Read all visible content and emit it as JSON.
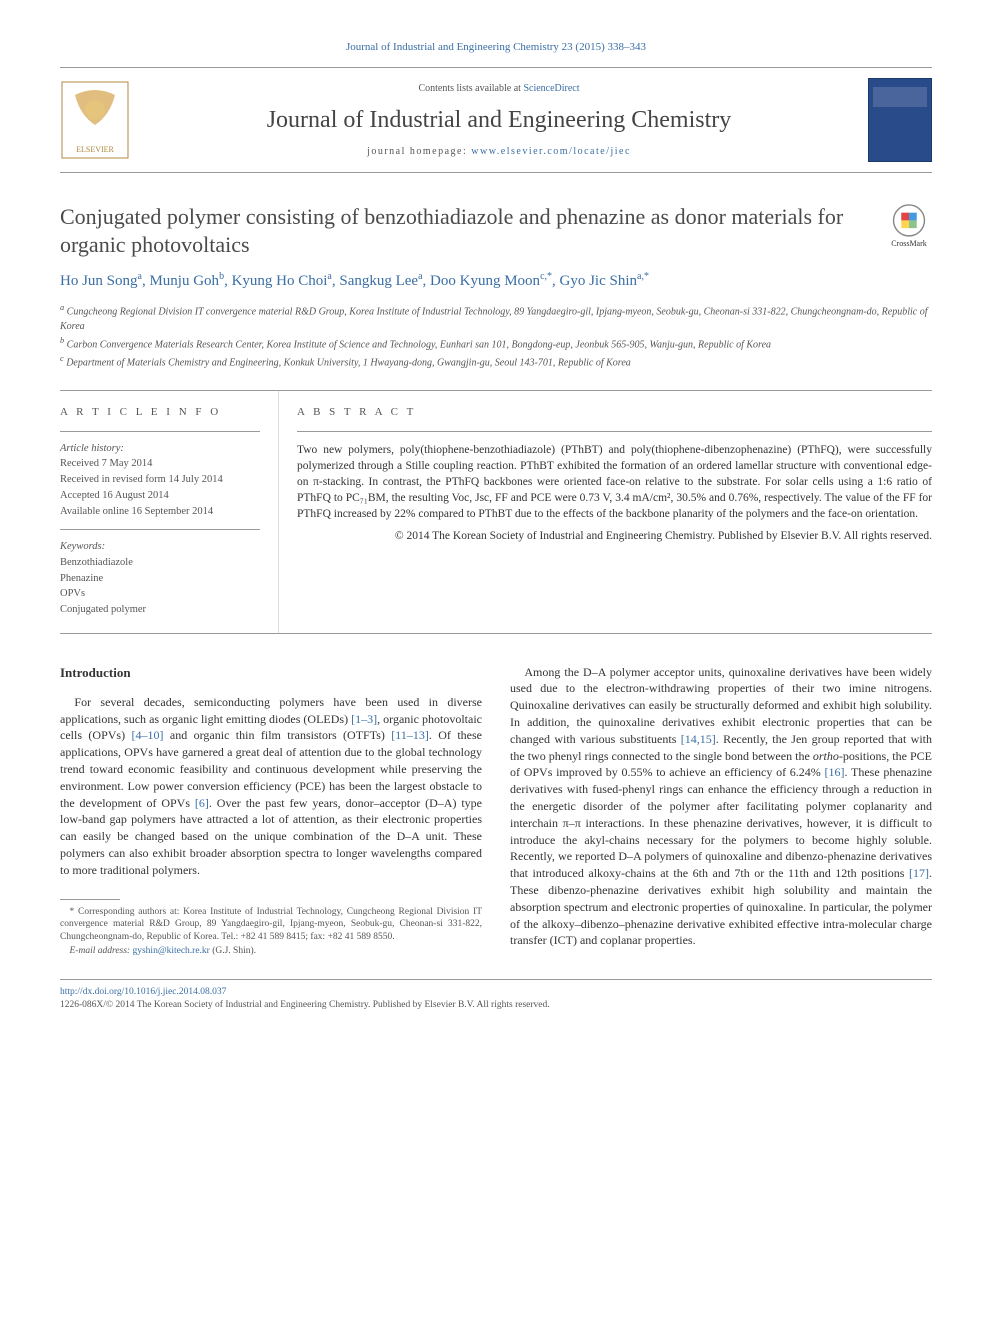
{
  "top_citation": "Journal of Industrial and Engineering Chemistry 23 (2015) 338–343",
  "masthead": {
    "contents_prefix": "Contents lists available at ",
    "contents_link": "ScienceDirect",
    "journal_name": "Journal of Industrial and Engineering Chemistry",
    "homepage_prefix": "journal homepage: ",
    "homepage_link": "www.elsevier.com/locate/jiec"
  },
  "crossmark_label": "CrossMark",
  "title": "Conjugated polymer consisting of benzothiadiazole and phenazine as donor materials for organic photovoltaics",
  "authors_html": "Ho Jun Song<span class='sup'>a</span>, Munju Goh<span class='sup'>b</span>, Kyung Ho Choi<span class='sup'>a</span>, Sangkug Lee<span class='sup'>a</span>, Doo Kyung Moon<span class='sup'>c,*</span>, Gyo Jic Shin<span class='sup'>a,*</span>",
  "affiliations": {
    "a": "Cungcheong Regional Division IT convergence material R&D Group, Korea Institute of Industrial Technology, 89 Yangdaegiro-gil, Ipjang-myeon, Seobuk-gu, Cheonan-si 331-822, Chungcheongnam-do, Republic of Korea",
    "b": "Carbon Convergence Materials Research Center, Korea Institute of Science and Technology, Eunhari san 101, Bongdong-eup, Jeonbuk 565-905, Wanju-gun, Republic of Korea",
    "c": "Department of Materials Chemistry and Engineering, Konkuk University, 1 Hwayang-dong, Gwangjin-gu, Seoul 143-701, Republic of Korea"
  },
  "article_info": {
    "heading": "A R T I C L E  I N F O",
    "history_label": "Article history:",
    "received": "Received 7 May 2014",
    "revised": "Received in revised form 14 July 2014",
    "accepted": "Accepted 16 August 2014",
    "online": "Available online 16 September 2014",
    "keywords_label": "Keywords:",
    "keywords": [
      "Benzothiadiazole",
      "Phenazine",
      "OPVs",
      "Conjugated polymer"
    ]
  },
  "abstract": {
    "heading": "A B S T R A C T",
    "text": "Two new polymers, poly(thiophene-benzothiadiazole) (PThBT) and poly(thiophene-dibenzophenazine) (PThFQ), were successfully polymerized through a Stille coupling reaction. PThBT exhibited the formation of an ordered lamellar structure with conventional edge-on π-stacking. In contrast, the PThFQ backbones were oriented face-on relative to the substrate. For solar cells using a 1:6 ratio of PThFQ to PC₇₁BM, the resulting Voc, Jsc, FF and PCE were 0.73 V, 3.4 mA/cm², 30.5% and 0.76%, respectively. The value of the FF for PThFQ increased by 22% compared to PThBT due to the effects of the backbone planarity of the polymers and the face-on orientation.",
    "copyright": "© 2014 The Korean Society of Industrial and Engineering Chemistry. Published by Elsevier B.V. All rights reserved."
  },
  "intro": {
    "heading": "Introduction",
    "col1_html": "For several decades, semiconducting polymers have been used in diverse applications, such as organic light emitting diodes (OLEDs) <span class='ref-link'>[1–3]</span>, organic photovoltaic cells (OPVs) <span class='ref-link'>[4–10]</span> and organic thin film transistors (OTFTs) <span class='ref-link'>[11–13]</span>. Of these applications, OPVs have garnered a great deal of attention due to the global technology trend toward economic feasibility and continuous development while preserving the environment. Low power conversion efficiency (PCE) has been the largest obstacle to the development of OPVs <span class='ref-link'>[6]</span>. Over the past few years, donor–acceptor (D–A) type low-band gap polymers have attracted a lot of attention, as their electronic properties can easily be changed based on the unique combination of the D–A unit. These polymers can also exhibit broader absorption spectra to longer wavelengths compared to more traditional polymers.",
    "col2_html": "Among the D–A polymer acceptor units, quinoxaline derivatives have been widely used due to the electron-withdrawing properties of their two imine nitrogens. Quinoxaline derivatives can easily be structurally deformed and exhibit high solubility. In addition, the quinoxaline derivatives exhibit electronic properties that can be changed with various substituents <span class='ref-link'>[14,15]</span>. Recently, the Jen group reported that with the two phenyl rings connected to the single bond between the <i>ortho</i>-positions, the PCE of OPVs improved by 0.55% to achieve an efficiency of 6.24% <span class='ref-link'>[16]</span>. These phenazine derivatives with fused-phenyl rings can enhance the efficiency through a reduction in the energetic disorder of the polymer after facilitating polymer coplanarity and interchain π–π interactions. In these phenazine derivatives, however, it is difficult to introduce the akyl-chains necessary for the polymers to become highly soluble. Recently, we reported D–A polymers of quinoxaline and dibenzo-phenazine derivatives that introduced alkoxy-chains at the 6th and 7th or the 11th and 12th positions <span class='ref-link'>[17]</span>. These dibenzo-phenazine derivatives exhibit high solubility and maintain the absorption spectrum and electronic properties of quinoxaline. In particular, the polymer of the alkoxy–dibenzo–phenazine derivative exhibited effective intra-molecular charge transfer (ICT) and coplanar properties."
  },
  "footnote": {
    "corresponding": "* Corresponding authors at: Korea Institute of Industrial Technology, Cungcheong Regional Division IT convergence material R&D Group, 89 Yangdaegiro-gil, Ipjang-myeon, Seobuk-gu, Cheonan-si 331-822, Chungcheongnam-do, Republic of Korea. Tel.: +82 41 589 8415; fax: +82 41 589 8550.",
    "email_label": "E-mail address: ",
    "email": "gyshin@kitech.re.kr",
    "email_suffix": " (G.J. Shin)."
  },
  "footer": {
    "doi": "http://dx.doi.org/10.1016/j.jiec.2014.08.037",
    "issn_line": "1226-086X/© 2014 The Korean Society of Industrial and Engineering Chemistry. Published by Elsevier B.V. All rights reserved."
  },
  "colors": {
    "link": "#3a6ea5",
    "text": "#333333",
    "muted": "#555555",
    "rule": "#999999",
    "cover_bg": "#2a4b8a"
  }
}
